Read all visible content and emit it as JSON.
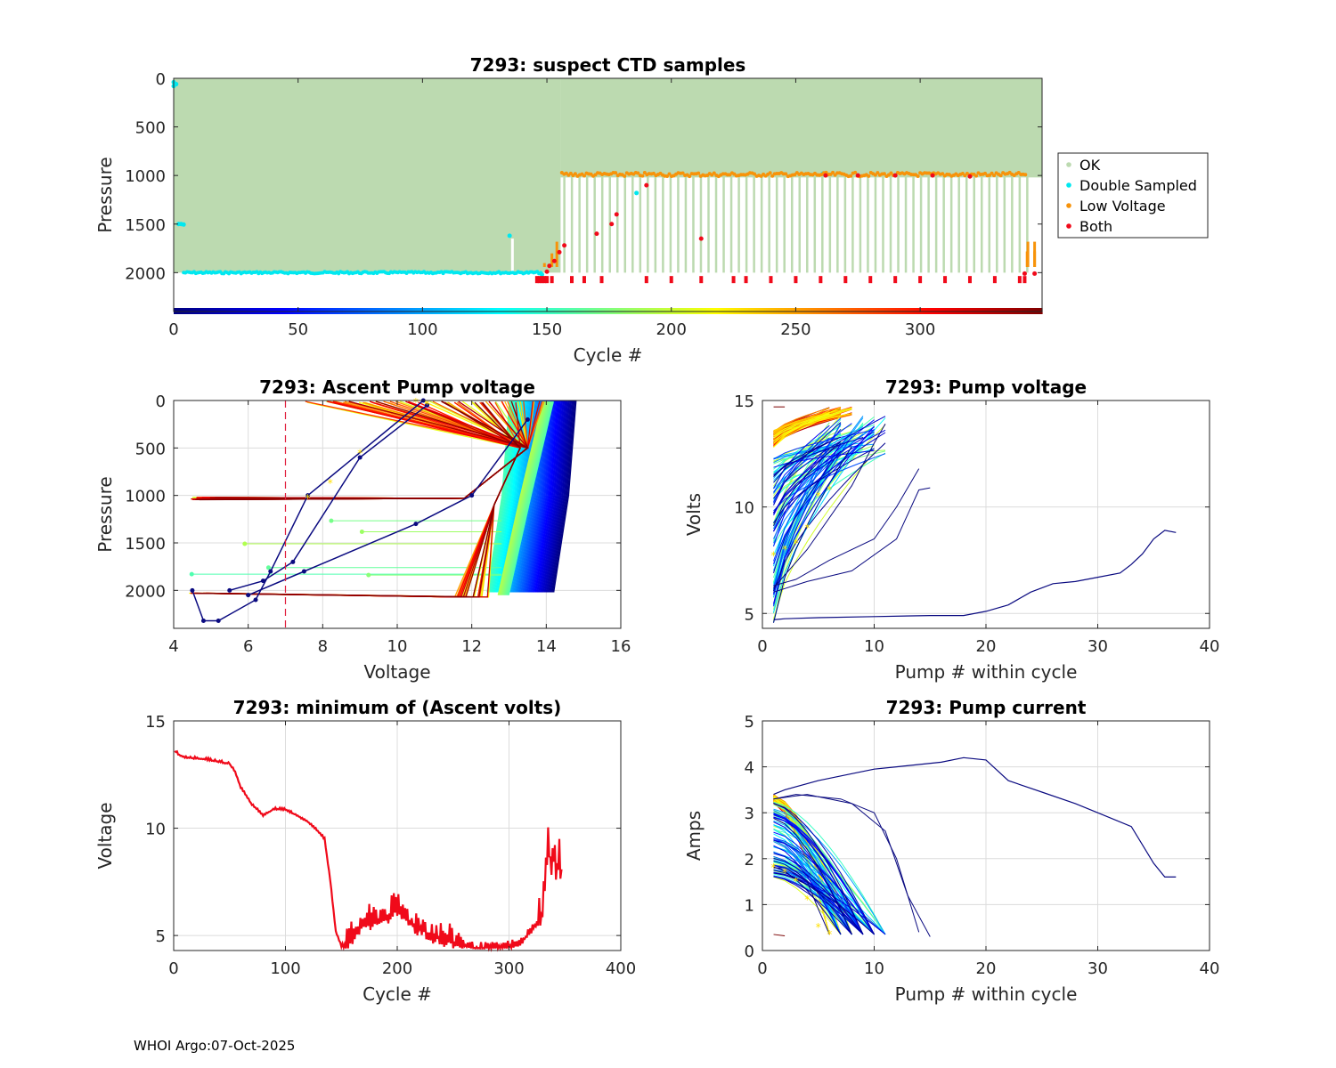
{
  "footer": "WHOI Argo:07-Oct-2025",
  "colors": {
    "ok": "#bcdab0",
    "double": "#00e8f0",
    "low": "#f7930a",
    "both": "#f00a1a",
    "axis": "#262626",
    "grid": "#dcdcdc",
    "threshold": "#e01e3c",
    "marker": "#ffe000"
  },
  "chart_data": [
    {
      "id": "suspect",
      "type": "scatter",
      "title": "7293: suspect CTD samples",
      "xlabel": "Cycle #",
      "ylabel": "Pressure",
      "xlim": [
        0,
        349
      ],
      "ylim": [
        2400,
        0
      ],
      "y_reversed": true,
      "xticks": [
        0,
        50,
        100,
        150,
        200,
        250,
        300
      ],
      "yticks": [
        0,
        500,
        1000,
        1500,
        2000
      ],
      "legend": [
        "OK",
        "Double Sampled",
        "Low Voltage",
        "Both"
      ],
      "legend_position": "outside-right",
      "colorbar_strip": "jet colors by cycle along bottom at pressure 2400",
      "series": [
        {
          "name": "OK",
          "note": "dense profiles 0-2000 dbar to cycle 155, then 0-1000 dbar with periodic 2000 dbar profiles"
        },
        {
          "name": "Double Sampled",
          "points": [
            [
              0,
              80
            ],
            [
              3,
              1500
            ],
            [
              5,
              2010
            ],
            [
              50,
              2010
            ],
            [
              100,
              2010
            ],
            [
              135,
              1620
            ],
            [
              148,
              2010
            ],
            [
              186,
              1180
            ],
            [
              260,
              980
            ]
          ]
        },
        {
          "name": "Low Voltage",
          "points": [
            [
              149,
              1920
            ],
            [
              152,
              1820
            ],
            [
              154,
              1700
            ],
            [
              157,
              1000
            ],
            [
              200,
              990
            ],
            [
              250,
              1000
            ],
            [
              300,
              1000
            ],
            [
              340,
              1030
            ],
            [
              343,
              1800
            ],
            [
              346,
              1700
            ]
          ]
        },
        {
          "name": "Both",
          "points": [
            [
              146,
              2010
            ],
            [
              150,
              2000
            ],
            [
              153,
              1880
            ],
            [
              160,
              2010
            ],
            [
              165,
              2010
            ],
            [
              172,
              2010
            ],
            [
              178,
              1400
            ],
            [
              176,
              1500
            ],
            [
              190,
              1100
            ],
            [
              212,
              1650
            ],
            [
              225,
              2010
            ],
            [
              262,
              1000
            ],
            [
              300,
              1000
            ],
            [
              342,
              2010
            ],
            [
              346,
              2010
            ]
          ]
        }
      ]
    },
    {
      "id": "ascent",
      "type": "line",
      "title": "7293: Ascent Pump voltage",
      "xlabel": "Voltage",
      "ylabel": "Pressure",
      "xlim": [
        4,
        16
      ],
      "ylim": [
        2400,
        0
      ],
      "y_reversed": true,
      "xticks": [
        4,
        6,
        8,
        10,
        12,
        14,
        16
      ],
      "yticks": [
        0,
        500,
        1000,
        1500,
        2000
      ],
      "threshold_voltage": 7,
      "note": "profiles colored by cycle (jet colormap); early cycles 12.8-14.8 V, late cycles 4-10 V"
    },
    {
      "id": "pumpv",
      "type": "line",
      "title": "7293: Pump voltage",
      "xlabel": "Pump # within cycle",
      "ylabel": "Volts",
      "xlim": [
        0,
        40
      ],
      "ylim": [
        4.3,
        15
      ],
      "xticks": [
        0,
        10,
        20,
        30,
        40
      ],
      "yticks": [
        5,
        10,
        15
      ],
      "longest_series": {
        "x": [
          1,
          2,
          5,
          10,
          15,
          18,
          20,
          22,
          24,
          26,
          28,
          30,
          32,
          33,
          34,
          35,
          36,
          37
        ],
        "y": [
          4.7,
          4.75,
          4.8,
          4.85,
          4.9,
          4.9,
          5.1,
          5.4,
          6.0,
          6.4,
          6.5,
          6.7,
          6.9,
          7.3,
          7.8,
          8.5,
          8.9,
          8.8
        ]
      }
    },
    {
      "id": "minvolts",
      "type": "line",
      "title": "7293: minimum of (Ascent volts)",
      "xlabel": "Cycle #",
      "ylabel": "Voltage",
      "xlim": [
        0,
        400
      ],
      "ylim": [
        4.3,
        15
      ],
      "xticks": [
        0,
        100,
        200,
        300,
        400
      ],
      "yticks": [
        5,
        10,
        15
      ],
      "x": [
        1,
        5,
        10,
        20,
        30,
        40,
        50,
        55,
        60,
        70,
        80,
        90,
        100,
        110,
        120,
        130,
        135,
        140,
        145,
        150,
        155,
        170,
        190,
        200,
        210,
        230,
        250,
        270,
        290,
        310,
        320,
        330,
        335,
        338,
        340,
        343,
        345,
        347
      ],
      "y": [
        13.6,
        13.4,
        13.3,
        13.25,
        13.2,
        13.1,
        13.0,
        12.6,
        11.9,
        11.1,
        10.6,
        10.9,
        10.85,
        10.6,
        10.3,
        9.8,
        9.5,
        7.6,
        5.2,
        4.5,
        4.5,
        5.5,
        5.8,
        6.2,
        5.6,
        5.0,
        4.6,
        4.4,
        4.4,
        4.6,
        5.2,
        6.0,
        9.1,
        8.2,
        8.6,
        7.8,
        8.4,
        7.8
      ],
      "color": "#f00a1a"
    },
    {
      "id": "current",
      "type": "line",
      "title": "7293: Pump current",
      "xlabel": "Pump # within cycle",
      "ylabel": "Amps",
      "xlim": [
        0,
        40
      ],
      "ylim": [
        0,
        5
      ],
      "xticks": [
        0,
        10,
        20,
        30,
        40
      ],
      "yticks": [
        0,
        1,
        2,
        3,
        4,
        5
      ],
      "longest_series": {
        "x": [
          1,
          2,
          5,
          8,
          10,
          12,
          14,
          16,
          18,
          20,
          22,
          25,
          28,
          30,
          33,
          35,
          36,
          37
        ],
        "y": [
          3.4,
          3.5,
          3.7,
          3.85,
          3.95,
          4.0,
          4.05,
          4.1,
          4.2,
          4.15,
          3.7,
          3.45,
          3.2,
          3.0,
          2.7,
          1.9,
          1.6,
          1.6
        ]
      }
    }
  ]
}
